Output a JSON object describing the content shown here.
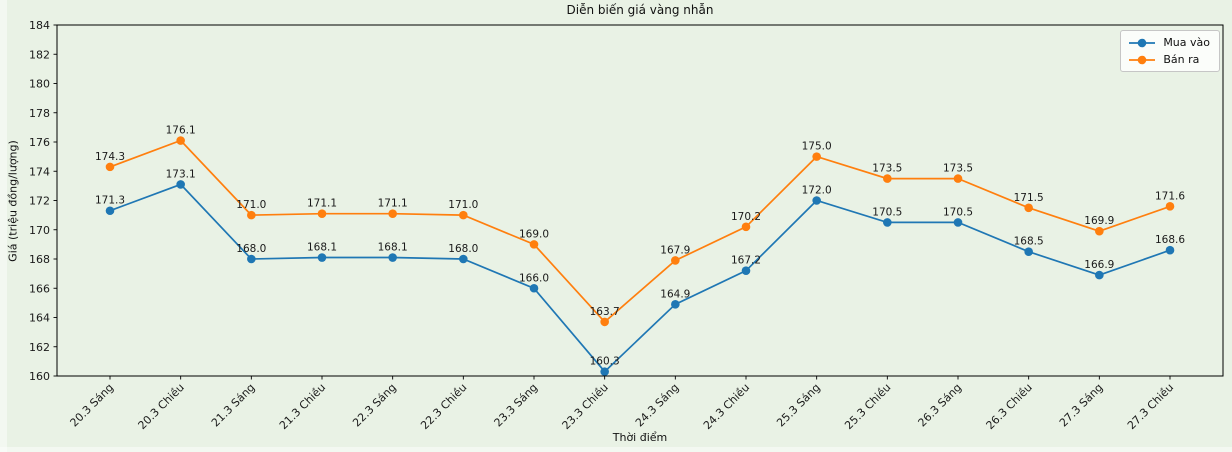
{
  "figure": {
    "background_color": "#e9f2e5"
  },
  "chart_data": {
    "type": "line",
    "title": "Diễn biến giá vàng nhẫn",
    "xlabel": "Thời điểm",
    "ylabel": "Giá (triệu đồng/lượng)",
    "categories": [
      "20.3 Sáng",
      "20.3 Chiều",
      "21.3 Sáng",
      "21.3 Chiều",
      "22.3 Sáng",
      "22.3 Chiều",
      "23.3 Sáng",
      "23.3 Chiều",
      "24.3 Sáng",
      "24.3 Chiều",
      "25.3 Sáng",
      "25.3 Chiều",
      "26.3 Sáng",
      "26.3 Chiều",
      "27.3 Sáng",
      "27.3 Chiều"
    ],
    "series": [
      {
        "name": "Mua vào",
        "color": "#1f77b4",
        "values": [
          171.3,
          173.1,
          168.0,
          168.1,
          168.1,
          168.0,
          166.0,
          160.3,
          164.9,
          167.2,
          172.0,
          170.5,
          170.5,
          168.5,
          166.9,
          168.6
        ]
      },
      {
        "name": "Bán ra",
        "color": "#ff7f0e",
        "values": [
          174.3,
          176.1,
          171.0,
          171.1,
          171.1,
          171.0,
          169.0,
          163.7,
          167.9,
          170.2,
          175.0,
          173.5,
          173.5,
          171.5,
          169.9,
          171.6
        ]
      }
    ],
    "ylim": [
      160,
      184
    ],
    "yticks": [
      160,
      162,
      164,
      166,
      168,
      170,
      172,
      174,
      176,
      178,
      180,
      182,
      184
    ],
    "grid": false,
    "legend_position": "upper right",
    "point_labels": true,
    "marker": "circle"
  }
}
